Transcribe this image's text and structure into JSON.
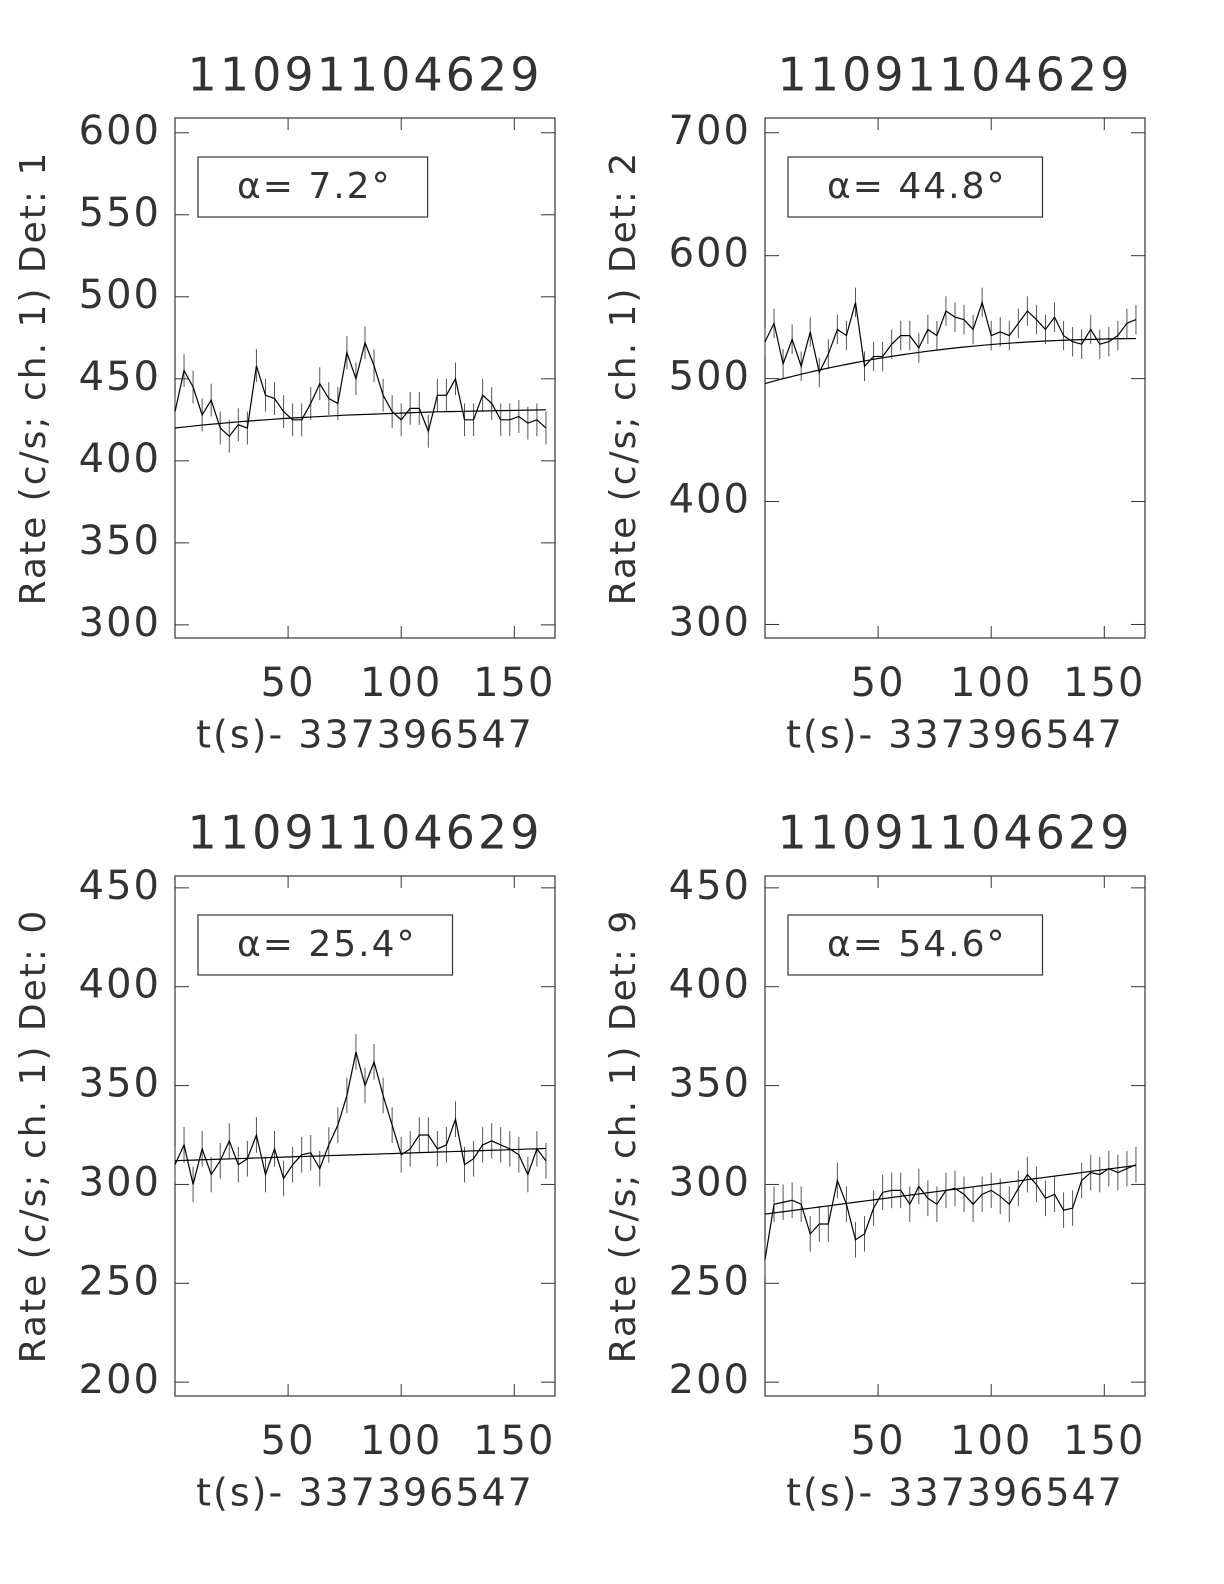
{
  "chart_data": [
    {
      "type": "line",
      "title": "11091104629",
      "xlabel": "t(s)- 337396547",
      "ylabel": "Rate (c/s; ch. 1) Det: 1",
      "annotation": "α= 7.2°",
      "x": [
        0,
        4,
        8,
        12,
        16,
        20,
        24,
        28,
        32,
        36,
        40,
        44,
        48,
        52,
        56,
        60,
        64,
        68,
        72,
        76,
        80,
        84,
        88,
        92,
        96,
        100,
        104,
        108,
        112,
        116,
        120,
        124,
        128,
        132,
        136,
        140,
        144,
        148,
        152,
        156,
        160,
        164
      ],
      "xlim": [
        0,
        168
      ],
      "xticks": [
        50,
        100,
        150
      ],
      "ylim": [
        292,
        609
      ],
      "yticks": [
        300,
        350,
        400,
        450,
        500,
        550,
        600
      ],
      "series": [
        {
          "color": "#000000",
          "error": 10,
          "values": [
            430,
            455,
            445,
            428,
            437,
            420,
            415,
            422,
            420,
            458,
            440,
            438,
            430,
            425,
            425,
            435,
            447,
            438,
            435,
            466,
            450,
            472,
            458,
            440,
            430,
            425,
            432,
            432,
            418,
            440,
            440,
            450,
            425,
            425,
            440,
            435,
            425,
            425,
            427,
            423,
            425,
            420
          ]
        },
        {
          "color": "#000000",
          "values": [
            420,
            420.6,
            421.2,
            421.8,
            422.3,
            422.8,
            423.3,
            423.8,
            424.2,
            424.6,
            425,
            425.4,
            425.8,
            426.1,
            426.4,
            426.7,
            427,
            427.3,
            427.6,
            427.9,
            428.1,
            428.3,
            428.5,
            428.7,
            428.9,
            429.1,
            429.3,
            429.5,
            429.7,
            429.9,
            430,
            430.1,
            430.2,
            430.3,
            430.4,
            430.5,
            430.6,
            430.7,
            430.8,
            430.9,
            431,
            431.1
          ]
        }
      ]
    },
    {
      "type": "line",
      "title": "11091104629",
      "xlabel": "t(s)- 337396547",
      "ylabel": "Rate (c/s; ch. 1) Det: 2",
      "annotation": "α= 44.8°",
      "x": [
        0,
        4,
        8,
        12,
        16,
        20,
        24,
        28,
        32,
        36,
        40,
        44,
        48,
        52,
        56,
        60,
        64,
        68,
        72,
        76,
        80,
        84,
        88,
        92,
        96,
        100,
        104,
        108,
        112,
        116,
        120,
        124,
        128,
        132,
        136,
        140,
        144,
        148,
        152,
        156,
        160,
        164
      ],
      "xlim": [
        0,
        168
      ],
      "xticks": [
        50,
        100,
        150
      ],
      "ylim": [
        289,
        712
      ],
      "yticks": [
        300,
        400,
        500,
        600,
        700
      ],
      "series": [
        {
          "color": "#000000",
          "error": 12,
          "values": [
            530,
            545,
            512,
            532,
            510,
            538,
            505,
            520,
            540,
            535,
            562,
            510,
            518,
            518,
            528,
            535,
            535,
            525,
            540,
            535,
            555,
            550,
            548,
            540,
            562,
            535,
            538,
            535,
            545,
            555,
            548,
            540,
            550,
            535,
            530,
            528,
            540,
            528,
            530,
            535,
            545,
            548
          ]
        },
        {
          "color": "#000000",
          "values": [
            496,
            498,
            500,
            501.8,
            503.6,
            505.3,
            507,
            508.6,
            510.1,
            511.6,
            513,
            514.4,
            515.7,
            516.9,
            518.1,
            519.2,
            520.3,
            521.3,
            522.3,
            523.2,
            524.1,
            524.9,
            525.7,
            526.4,
            527.1,
            527.7,
            528.3,
            528.8,
            529.3,
            529.8,
            530.2,
            530.6,
            530.9,
            531.2,
            531.5,
            531.7,
            531.9,
            532.1,
            532.3,
            532.4,
            532.5,
            532.6
          ]
        }
      ]
    },
    {
      "type": "line",
      "title": "11091104629",
      "xlabel": "t(s)- 337396547",
      "ylabel": "Rate (c/s; ch. 1) Det: 0",
      "annotation": "α= 25.4°",
      "x": [
        0,
        4,
        8,
        12,
        16,
        20,
        24,
        28,
        32,
        36,
        40,
        44,
        48,
        52,
        56,
        60,
        64,
        68,
        72,
        76,
        80,
        84,
        88,
        92,
        96,
        100,
        104,
        108,
        112,
        116,
        120,
        124,
        128,
        132,
        136,
        140,
        144,
        148,
        152,
        156,
        160,
        164
      ],
      "xlim": [
        0,
        168
      ],
      "xticks": [
        50,
        100,
        150
      ],
      "ylim": [
        193,
        456
      ],
      "yticks": [
        200,
        250,
        300,
        350,
        400,
        450
      ],
      "series": [
        {
          "color": "#000000",
          "error": 9,
          "values": [
            310,
            320,
            300,
            318,
            305,
            312,
            322,
            310,
            313,
            325,
            305,
            318,
            303,
            310,
            315,
            316,
            308,
            320,
            330,
            345,
            367,
            350,
            362,
            345,
            330,
            315,
            318,
            325,
            325,
            318,
            320,
            333,
            310,
            313,
            320,
            322,
            320,
            318,
            315,
            305,
            318,
            312
          ]
        },
        {
          "color": "#000000",
          "values": [
            312,
            312.2,
            312.3,
            312.5,
            312.6,
            312.8,
            312.9,
            313.1,
            313.2,
            313.4,
            313.5,
            313.7,
            313.8,
            314,
            314.1,
            314.3,
            314.4,
            314.6,
            314.7,
            314.9,
            315,
            315.2,
            315.3,
            315.5,
            315.6,
            315.8,
            315.9,
            316.1,
            316.2,
            316.4,
            316.5,
            316.7,
            316.8,
            317,
            317.1,
            317.3,
            317.4,
            317.6,
            317.7,
            317.9,
            318,
            318.2
          ]
        }
      ]
    },
    {
      "type": "line",
      "title": "11091104629",
      "xlabel": "t(s)- 337396547",
      "ylabel": "Rate (c/s; ch. 1) Det: 9",
      "annotation": "α= 54.6°",
      "x": [
        0,
        4,
        8,
        12,
        16,
        20,
        24,
        28,
        32,
        36,
        40,
        44,
        48,
        52,
        56,
        60,
        64,
        68,
        72,
        76,
        80,
        84,
        88,
        92,
        96,
        100,
        104,
        108,
        112,
        116,
        120,
        124,
        128,
        132,
        136,
        140,
        144,
        148,
        152,
        156,
        160,
        164
      ],
      "xlim": [
        0,
        168
      ],
      "xticks": [
        50,
        100,
        150
      ],
      "ylim": [
        193,
        456
      ],
      "yticks": [
        200,
        250,
        300,
        350,
        400,
        450
      ],
      "series": [
        {
          "color": "#000000",
          "error": 9,
          "values": [
            262,
            290,
            291,
            292,
            290,
            275,
            280,
            280,
            302,
            290,
            272,
            275,
            288,
            296,
            297,
            297,
            290,
            299,
            293,
            290,
            297,
            298,
            295,
            290,
            295,
            297,
            294,
            290,
            298,
            305,
            300,
            293,
            295,
            287,
            288,
            302,
            306,
            305,
            308,
            306,
            308,
            310
          ]
        },
        {
          "color": "#000000",
          "values": [
            285,
            285.6,
            286.2,
            286.8,
            287.4,
            288,
            288.6,
            289.2,
            289.8,
            290.4,
            291,
            291.6,
            292.2,
            292.8,
            293.4,
            294,
            294.6,
            295.2,
            295.8,
            296.4,
            297,
            297.6,
            298.2,
            298.8,
            299.4,
            300,
            300.6,
            301.2,
            301.8,
            302.4,
            303,
            303.6,
            304.2,
            304.8,
            305.4,
            306,
            306.6,
            307.2,
            307.8,
            308.4,
            309,
            309.6
          ]
        }
      ]
    }
  ]
}
